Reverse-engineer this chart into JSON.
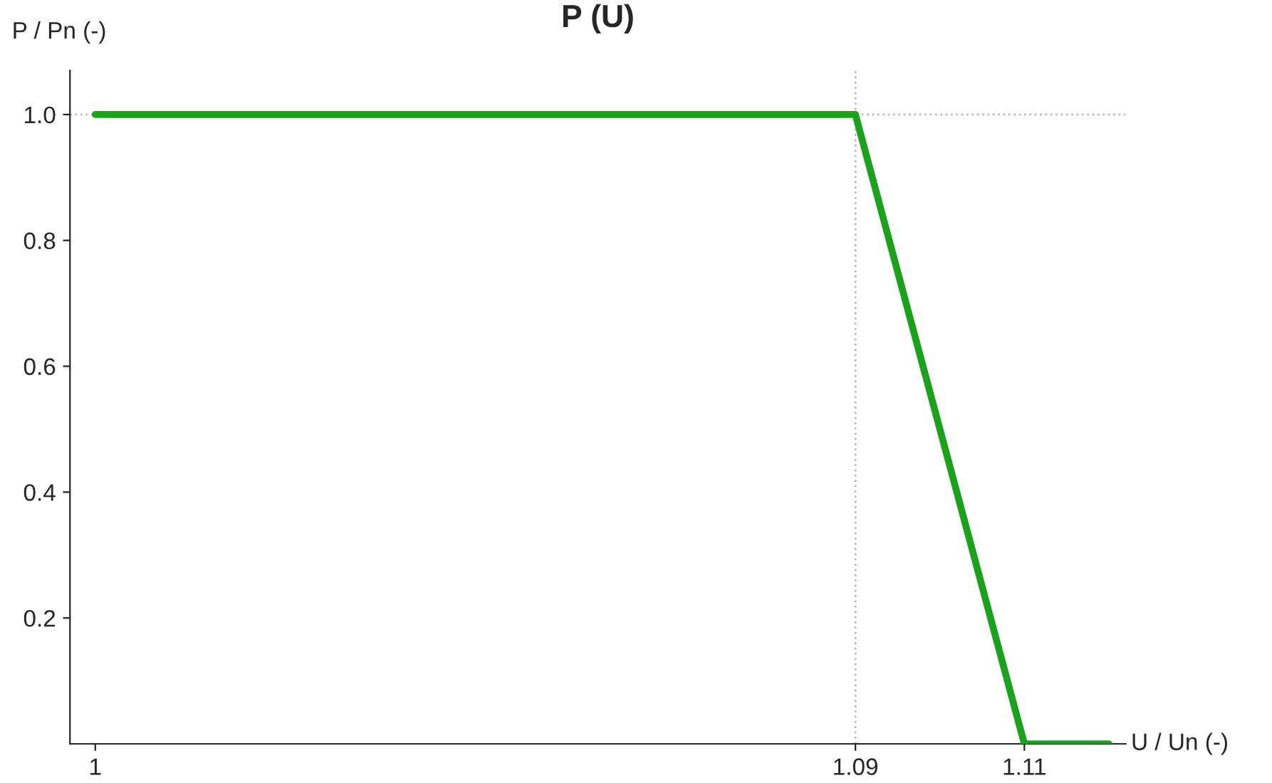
{
  "chart_data": {
    "type": "line",
    "title": "P (U)",
    "xlabel": "U / Un (-)",
    "ylabel": "P / Pn (-)",
    "x": [
      1,
      1.09,
      1.11,
      1.12
    ],
    "series": [
      {
        "color": "#1aa31a",
        "values": [
          1,
          1,
          0,
          0
        ]
      }
    ],
    "xlim": [
      0.997,
      1.122
    ],
    "ylim": [
      0,
      1.07
    ],
    "xticks": [
      1,
      1.09,
      1.11
    ],
    "yticks": [
      0.2,
      0.4,
      0.6,
      0.8,
      {
        "value": 1,
        "label": "1.0"
      }
    ],
    "ref_lines": [
      {
        "axis": "x",
        "value": 1.09,
        "color": "#bbbbbb",
        "line_style": "dotted"
      },
      {
        "axis": "y",
        "value": 1,
        "color": "#bbbbbb",
        "line_style": "dotted"
      }
    ],
    "grid": false,
    "legend": false,
    "marker": "none",
    "line_style": "solid"
  }
}
